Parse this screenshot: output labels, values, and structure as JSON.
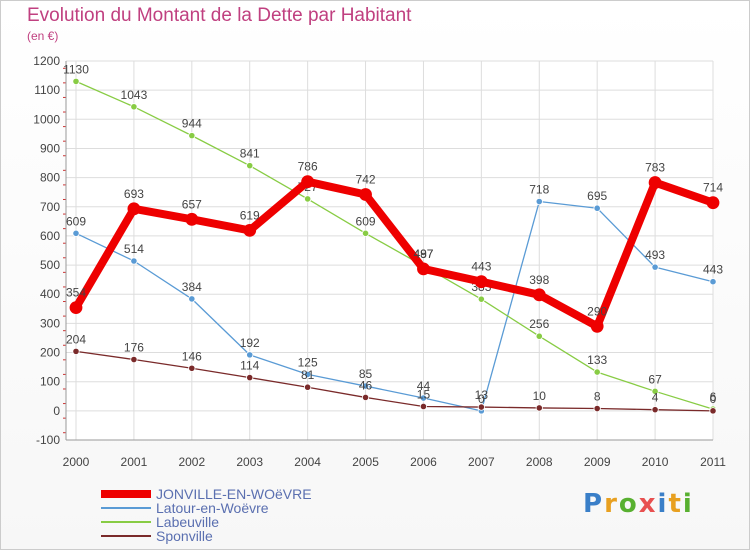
{
  "title": "Evolution du Montant de la Dette par Habitant",
  "unit": "(en €)",
  "brand": "Proxiti",
  "chart_data": {
    "type": "line",
    "title": "Evolution du Montant de la Dette par Habitant",
    "ylabel": "(en €)",
    "x": [
      "2000",
      "2001",
      "2002",
      "2003",
      "2004",
      "2005",
      "2006",
      "2007",
      "2008",
      "2009",
      "2010",
      "2011"
    ],
    "ylim": [
      -100,
      1200
    ],
    "yticks": [
      -100,
      0,
      100,
      200,
      300,
      400,
      500,
      600,
      700,
      800,
      900,
      1000,
      1100,
      1200
    ],
    "grid": true,
    "legend": "bottom-left",
    "series": [
      {
        "name": "Latour-en-Woëvre",
        "color": "#5a9bd5",
        "values": [
          609,
          514,
          384,
          192,
          125,
          85,
          44,
          0,
          718,
          695,
          493,
          443
        ]
      },
      {
        "name": "Labeuville",
        "color": "#88cc44",
        "values": [
          1130,
          1043,
          944,
          841,
          727,
          609,
          497,
          383,
          256,
          133,
          67,
          6
        ]
      },
      {
        "name": "Sponville",
        "color": "#7a2a2a",
        "values": [
          204,
          176,
          146,
          114,
          81,
          46,
          15,
          13,
          10,
          8,
          4,
          0
        ]
      },
      {
        "name": "JONVILLE-EN-WOëVRE",
        "color": "#ee0000",
        "values": [
          354,
          693,
          657,
          619,
          786,
          742,
          487,
          443,
          398,
          290,
          783,
          714
        ]
      }
    ]
  }
}
